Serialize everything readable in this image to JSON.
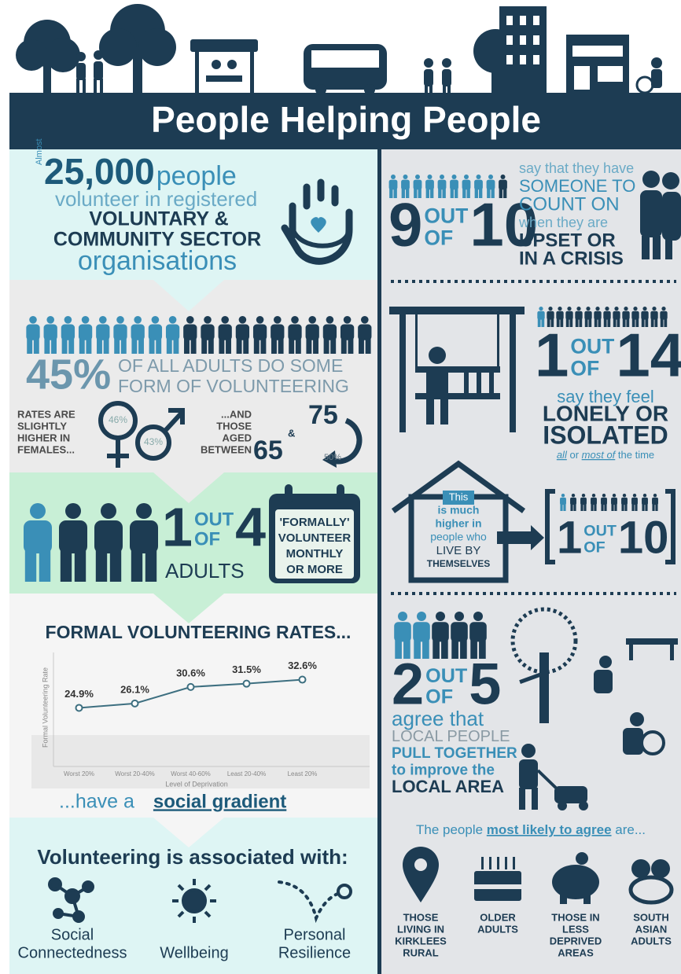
{
  "header": {
    "title": "People Helping People"
  },
  "volunteers": {
    "prefix": "Almost",
    "number": "25,000",
    "unit": "people",
    "line2": "volunteer in registered",
    "line3": "VOLUNTARY &",
    "line4": "COMMUNITY SECTOR",
    "line5": "organisations"
  },
  "adults": {
    "percent": "45%",
    "line1": "OF ALL ADULTS DO SOME",
    "line2": "FORM OF VOLUNTEERING",
    "female_note": [
      "RATES ARE",
      "SLIGHTLY",
      "HIGHER IN",
      "FEMALES..."
    ],
    "female_rate": "46%",
    "male_rate": "43%",
    "age_note": [
      "...AND",
      "THOSE",
      "AGED",
      "BETWEEN"
    ],
    "age_from": "65",
    "age_and": "&",
    "age_to": "75",
    "age_rate": "50%"
  },
  "formal": {
    "numerator": "1",
    "out": "OUT",
    "of": "OF",
    "denominator": "4",
    "who": "ADULTS",
    "calendar": [
      "'FORMALLY'",
      "VOLUNTEER",
      "MONTHLY",
      "OR MORE"
    ]
  },
  "chart_data": {
    "type": "line",
    "title": "FORMAL VOLUNTEERING RATES...",
    "ylabel": "Formal Volunteering Rate",
    "xlabel": "Level of Deprivation",
    "categories": [
      "Worst 20%",
      "Worst 20-40%",
      "Worst 40-60%",
      "Least 20-40%",
      "Least 20%"
    ],
    "values": [
      24.9,
      26.1,
      30.6,
      31.5,
      32.6
    ],
    "value_labels": [
      "24.9%",
      "26.1%",
      "30.6%",
      "31.5%",
      "32.6%"
    ],
    "color": "#3d6f80",
    "ylim": [
      10,
      40
    ]
  },
  "gradient": {
    "prefix": "...have a",
    "emphasis": "social gradient"
  },
  "associated": {
    "title": "Volunteering is associated with:",
    "items": [
      [
        "Social",
        "Connectedness"
      ],
      [
        "Wellbeing"
      ],
      [
        "Personal",
        "Resilience"
      ]
    ]
  },
  "support": {
    "numerator": "9",
    "out": "OUT",
    "of": "OF",
    "denominator": "10",
    "lines": [
      "say that they have",
      "SOMEONE TO",
      "COUNT ON",
      "when they are",
      "UPSET OR",
      "IN A CRISIS"
    ]
  },
  "lonely": {
    "numerator": "1",
    "out": "OUT",
    "of": "OF",
    "denominator": "14",
    "lines": [
      "say they feel",
      "LONELY OR",
      "ISOLATED"
    ],
    "freq": [
      "all",
      "or",
      "most of",
      "the time"
    ]
  },
  "alone": {
    "lines": [
      "This",
      "is much",
      "higher in",
      "people who",
      "LIVE BY",
      "THEMSELVES"
    ],
    "numerator": "1",
    "out": "OUT",
    "of": "OF",
    "denominator": "10"
  },
  "local": {
    "numerator": "2",
    "out": "OUT",
    "of": "OF",
    "denominator": "5",
    "lines": [
      "agree that",
      "LOCAL PEOPLE",
      "PULL TOGETHER",
      "to improve the",
      "LOCAL AREA"
    ]
  },
  "likely": {
    "prefix": "The people",
    "emphasis": "most likely to agree",
    "suffix": "are...",
    "groups": [
      [
        "THOSE",
        "LIVING IN",
        "KIRKLEES",
        "RURAL"
      ],
      [
        "OLDER",
        "ADULTS"
      ],
      [
        "THOSE IN",
        "LESS",
        "DEPRIVED",
        "AREAS"
      ],
      [
        "SOUTH",
        "ASIAN",
        "ADULTS"
      ]
    ]
  }
}
